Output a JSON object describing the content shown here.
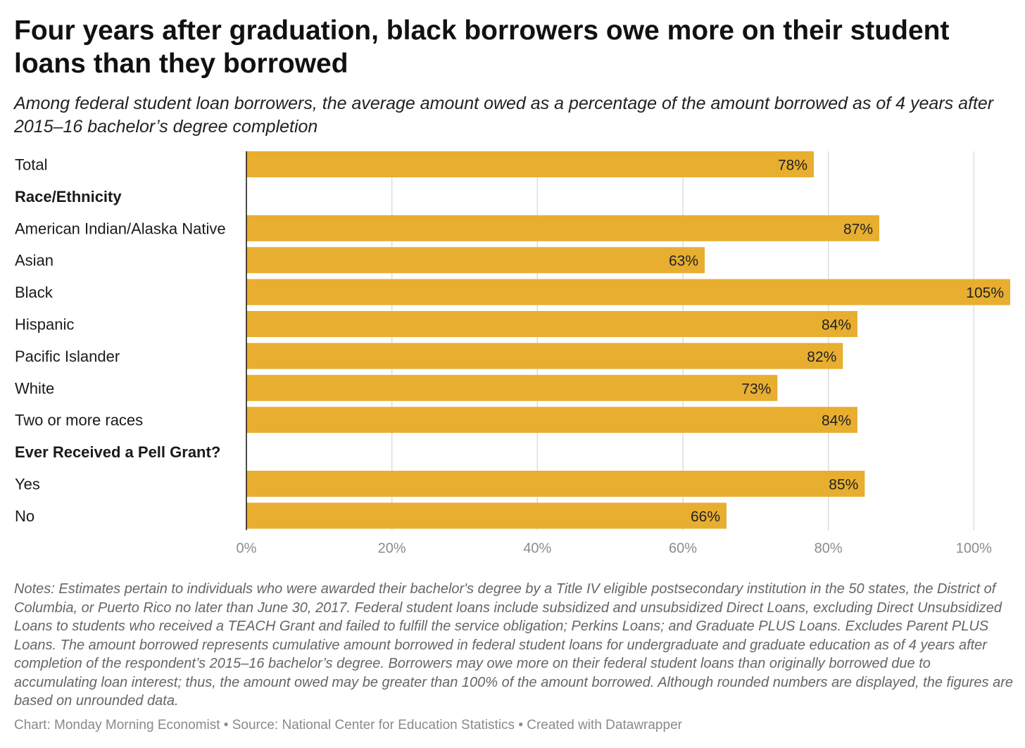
{
  "title": "Four years after graduation, black borrowers owe more on their student loans than they borrowed",
  "subtitle": "Among federal student loan borrowers, the average amount owed as a percentage of the amount borrowed as of 4 years after 2015–16 bachelor’s degree completion",
  "colors": {
    "bar": "#E8AE30",
    "grid": "#dddddd",
    "axis": "#111111"
  },
  "chart_data": {
    "type": "bar",
    "orientation": "horizontal",
    "unit": "%",
    "xlim": [
      0,
      105
    ],
    "ticks": [
      0,
      20,
      40,
      60,
      80,
      100
    ],
    "tick_labels": [
      "0%",
      "20%",
      "40%",
      "60%",
      "80%",
      "100%"
    ],
    "grid": true,
    "rows": [
      {
        "label": "Total",
        "value": 78,
        "value_label": "78%"
      },
      {
        "label": "Race/Ethnicity",
        "header": true
      },
      {
        "label": "American Indian/Alaska Native",
        "value": 87,
        "value_label": "87%"
      },
      {
        "label": "Asian",
        "value": 63,
        "value_label": "63%"
      },
      {
        "label": "Black",
        "value": 105,
        "value_label": "105%"
      },
      {
        "label": "Hispanic",
        "value": 84,
        "value_label": "84%"
      },
      {
        "label": "Pacific Islander",
        "value": 82,
        "value_label": "82%"
      },
      {
        "label": "White",
        "value": 73,
        "value_label": "73%"
      },
      {
        "label": "Two or more races",
        "value": 84,
        "value_label": "84%"
      },
      {
        "label": "Ever Received a Pell Grant?",
        "header": true
      },
      {
        "label": "Yes",
        "value": 85,
        "value_label": "85%"
      },
      {
        "label": "No",
        "value": 66,
        "value_label": "66%"
      }
    ]
  },
  "notes": "Notes: Estimates pertain to individuals who were awarded their bachelor's degree by a Title IV eligible postsecondary institution in the 50 states, the District of Columbia, or Puerto Rico no later than June 30, 2017. Federal student loans include subsidized and unsubsidized Direct Loans, excluding Direct Unsubsidized Loans to students who received a TEACH Grant and failed to fulfill the service obligation; Perkins Loans; and Graduate PLUS Loans. Excludes Parent PLUS Loans. The amount borrowed represents cumulative amount borrowed in federal student loans for undergraduate and graduate education as of 4 years after completion of the respondent’s 2015–16 bachelor’s degree. Borrowers may owe more on their federal student loans than originally borrowed due to accumulating loan interest; thus, the amount owed may be greater than 100% of the amount borrowed. Although rounded numbers are displayed, the figures are based on unrounded data.",
  "footer": "Chart: Monday Morning Economist • Source: National Center for Education Statistics • Created with Datawrapper"
}
